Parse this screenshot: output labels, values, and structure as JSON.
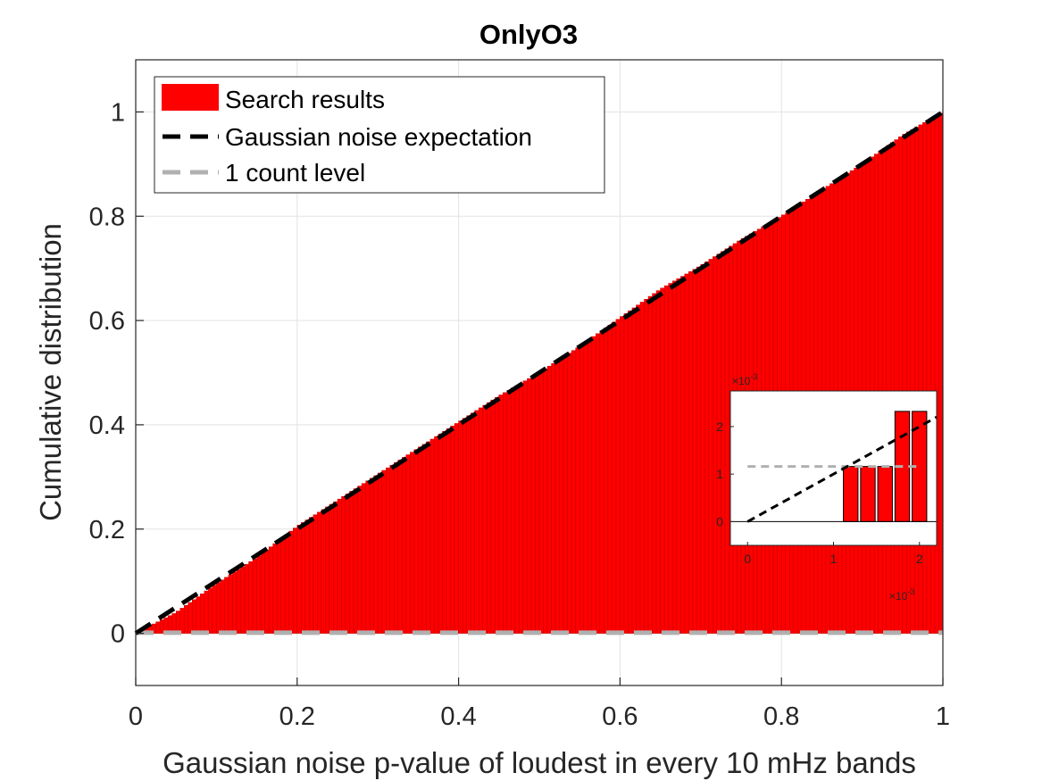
{
  "chart_data": {
    "type": "bar",
    "title": "OnlyO3",
    "xlabel": "Gaussian noise p-value of loudest in every 10 mHz bands",
    "ylabel": "Cumulative distribution",
    "xlim": [
      0,
      1
    ],
    "ylim": [
      -0.1,
      1.1
    ],
    "xticks": [
      "0",
      "0.2",
      "0.4",
      "0.6",
      "0.8",
      "1"
    ],
    "yticks": [
      "0",
      "0.2",
      "0.4",
      "0.6",
      "0.8",
      "1"
    ],
    "grid": true,
    "legend_position": "top-left",
    "series": [
      {
        "name": "Search results",
        "kind": "histogram-bars",
        "color": "#ff0000",
        "x": [
          0.0,
          0.05,
          0.1,
          0.15,
          0.2,
          0.25,
          0.3,
          0.35,
          0.4,
          0.45,
          0.5,
          0.55,
          0.6,
          0.65,
          0.7,
          0.75,
          0.8,
          0.85,
          0.9,
          0.95,
          1.0
        ],
        "values": [
          0.0,
          0.04,
          0.095,
          0.145,
          0.205,
          0.255,
          0.305,
          0.355,
          0.405,
          0.455,
          0.5,
          0.55,
          0.605,
          0.66,
          0.705,
          0.755,
          0.8,
          0.85,
          0.9,
          0.955,
          1.0
        ]
      },
      {
        "name": "Gaussian noise expectation",
        "kind": "dashed-line",
        "color": "#000000",
        "x": [
          0,
          1
        ],
        "values": [
          0,
          1
        ]
      },
      {
        "name": "1 count level",
        "kind": "dashed-line",
        "color": "#aaaaaa",
        "x": [
          0,
          1
        ],
        "values": [
          0.00116,
          0.00116
        ]
      }
    ],
    "inset": {
      "x_multiplier": "×10",
      "x_multiplier_exp": "-3",
      "y_multiplier": "×10",
      "y_multiplier_exp": "-3",
      "xlim": [
        -0.2,
        2.2
      ],
      "ylim": [
        -0.5,
        2.75
      ],
      "xticks": [
        "0",
        "1",
        "2"
      ],
      "yticks": [
        "0",
        "1",
        "2"
      ],
      "bars_x": [
        1.2,
        1.4,
        1.6,
        1.8,
        2.0
      ],
      "bars_values": [
        1.16,
        1.16,
        1.16,
        2.32,
        2.32
      ],
      "bar_width": 0.17,
      "expectation_x": [
        0,
        2.2
      ],
      "expectation_values": [
        0,
        2.2
      ],
      "one_count_x": [
        0,
        2.0
      ],
      "one_count_values": [
        1.16,
        1.16
      ]
    }
  }
}
